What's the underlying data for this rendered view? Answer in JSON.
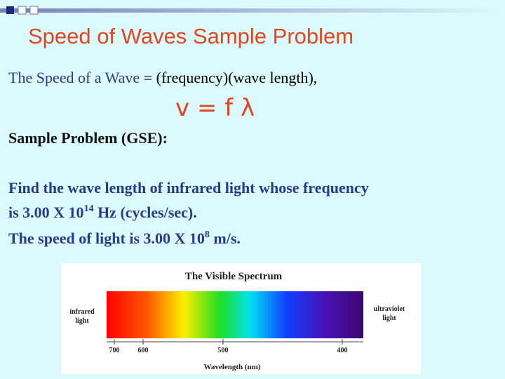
{
  "title": "Speed of Waves Sample Problem",
  "formula_line": {
    "term": "The Speed of a Wave",
    "equals": "=",
    "definition": "(frequency)(wave length),"
  },
  "equation": "v = f λ",
  "sample_heading": "Sample Problem (GSE):",
  "problem": {
    "line1": "Find the wave length of infrared light whose frequency",
    "line2": {
      "before": "is 3.00 X 10",
      "exponent": "14",
      "after": "Hz (cycles/sec)."
    },
    "line3": {
      "before": "The speed of light is 3.00 X 10",
      "exponent": "8",
      "after": "m/s."
    }
  },
  "spectrum": {
    "title": "The Visible Spectrum",
    "left_label": [
      "infrared",
      "light"
    ],
    "right_label": [
      "ultraviolet",
      "light"
    ],
    "ticks": [
      "700",
      "600",
      "500",
      "400"
    ],
    "axis_label": "Wavelength (nm)"
  }
}
